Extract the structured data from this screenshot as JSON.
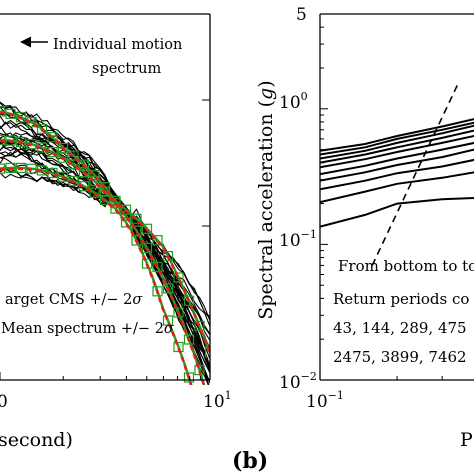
{
  "chart_data": [
    {
      "type": "line",
      "panel": "left (cropped)",
      "xscale": "log",
      "yscale": "log",
      "xlim": [
        1,
        10
      ],
      "xticks": [
        {
          "value": 1,
          "label": "0"
        },
        {
          "value": 10,
          "label": "10",
          "exp": "1"
        }
      ],
      "xlabel": "second)",
      "annotations": {
        "arrow_label_1": "Individual motion",
        "arrow_label_2": "spectrum",
        "legend_1": "arget CMS +/− 2",
        "legend_2": "Mean spectrum +/− 2",
        "sigma": "σ"
      },
      "colors": {
        "individual": "#000000",
        "target": "#1f9e1f",
        "mean": "#e0201b"
      },
      "series": [
        {
          "name": "Individual motion spectrum",
          "note": "about 30 recorded-motion spectra, drawn in black"
        },
        {
          "name": "arget CMS +/− 2σ",
          "style": "green line with square markers",
          "values_rel_cms": {
            "x": [
              1.0,
              2.0,
              3.6,
              4.2,
              6.0,
              9.8
            ],
            "median": [
              1.0,
              0.95,
              0.9,
              0.9,
              0.75,
              0.35
            ],
            "upper": [
              2.0,
              1.2,
              0.95,
              1.1,
              1.6,
              1.2
            ],
            "lower": [
              0.5,
              0.6,
              0.8,
              0.75,
              0.35,
              0.09
            ]
          }
        },
        {
          "name": "Mean spectrum +/− 2σ",
          "style": "red dashed line"
        }
      ]
    },
    {
      "type": "line",
      "panel_label": "(b)",
      "xscale": "log",
      "yscale": "log",
      "xlim": [
        0.1,
        1
      ],
      "ylim": [
        0.01,
        5
      ],
      "xticks": [
        {
          "value": 0.1,
          "base": "10",
          "exp": "−1"
        }
      ],
      "yticks": [
        {
          "value": 5,
          "label": "5"
        },
        {
          "value": 1,
          "base": "10",
          "exp": "0"
        },
        {
          "value": 0.1,
          "base": "10",
          "exp": "−1"
        },
        {
          "value": 0.01,
          "base": "10",
          "exp": "−2"
        }
      ],
      "ylabel": "Spectral acceleration (g)",
      "xlabel": "P",
      "annotations": {
        "line1": "From bottom to to",
        "line2": "Return periods co",
        "line3": "43, 144, 289, 475",
        "line4": "2475, 3899, 7462"
      },
      "colors": {
        "curves": "#000000"
      },
      "dashed_line": {
        "x": [
          0.16,
          0.35
        ],
        "y": [
          0.07,
          1.6
        ]
      },
      "x": [
        0.1,
        0.15,
        0.2,
        0.3,
        0.4,
        0.5,
        0.6,
        0.7
      ],
      "series": [
        {
          "values": [
            0.135,
            0.165,
            0.2,
            0.215,
            0.22,
            0.23,
            0.24,
            0.25
          ]
        },
        {
          "values": [
            0.205,
            0.245,
            0.28,
            0.31,
            0.34,
            0.37,
            0.4,
            0.42
          ]
        },
        {
          "values": [
            0.255,
            0.295,
            0.335,
            0.375,
            0.42,
            0.46,
            0.5,
            0.53
          ]
        },
        {
          "values": [
            0.295,
            0.34,
            0.385,
            0.44,
            0.5,
            0.55,
            0.59,
            0.62
          ]
        },
        {
          "values": [
            0.33,
            0.38,
            0.43,
            0.5,
            0.56,
            0.62,
            0.66,
            0.69
          ]
        },
        {
          "values": [
            0.37,
            0.425,
            0.48,
            0.56,
            0.63,
            0.69,
            0.73,
            0.76
          ]
        },
        {
          "values": [
            0.4,
            0.46,
            0.52,
            0.61,
            0.69,
            0.75,
            0.79,
            0.82
          ]
        },
        {
          "values": [
            0.43,
            0.49,
            0.56,
            0.66,
            0.75,
            0.81,
            0.86,
            0.88
          ]
        },
        {
          "values": [
            0.46,
            0.52,
            0.6,
            0.7,
            0.79,
            0.86,
            0.91,
            0.93
          ]
        },
        {
          "values": [
            0.49,
            0.55,
            0.63,
            0.74,
            0.84,
            0.9,
            0.95,
            0.97
          ]
        }
      ]
    }
  ]
}
